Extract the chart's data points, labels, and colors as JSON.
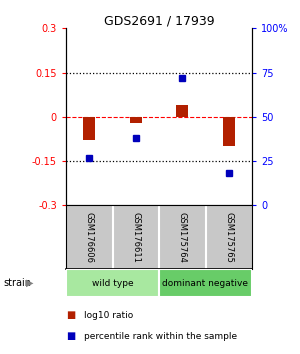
{
  "title": "GDS2691 / 17939",
  "samples": [
    "GSM176606",
    "GSM176611",
    "GSM175764",
    "GSM175765"
  ],
  "log10_ratio": [
    -0.08,
    -0.02,
    0.04,
    -0.1
  ],
  "percentile_rank": [
    27,
    38,
    72,
    18
  ],
  "ylim_left": [
    -0.3,
    0.3
  ],
  "ylim_right": [
    0,
    100
  ],
  "yticks_left": [
    -0.3,
    -0.15,
    0,
    0.15,
    0.3
  ],
  "yticks_right": [
    0,
    25,
    50,
    75,
    100
  ],
  "ytick_labels_left": [
    "-0.3",
    "-0.15",
    "0",
    "0.15",
    "0.3"
  ],
  "ytick_labels_right": [
    "0",
    "25",
    "50",
    "75",
    "100%"
  ],
  "hlines_dotted": [
    -0.15,
    0.15
  ],
  "hline_dashed_color": "red",
  "groups": [
    {
      "label": "wild type",
      "samples": [
        0,
        1
      ],
      "color": "#A8E8A0"
    },
    {
      "label": "dominant negative",
      "samples": [
        2,
        3
      ],
      "color": "#68CC68"
    }
  ],
  "bar_color_red": "#B22000",
  "bar_color_blue": "#0000BB",
  "bar_width": 0.25,
  "strain_label": "strain",
  "legend_red": "log10 ratio",
  "legend_blue": "percentile rank within the sample",
  "background_sample": "#C8C8C8",
  "title_fontsize": 9
}
